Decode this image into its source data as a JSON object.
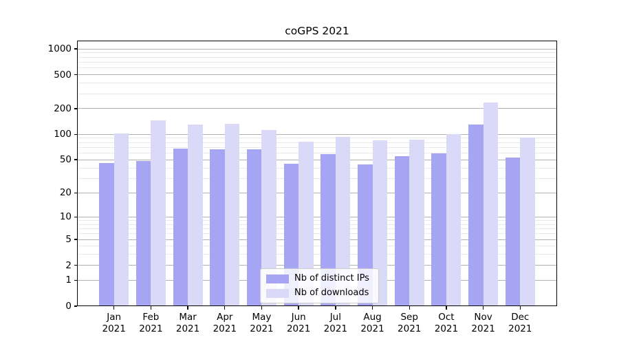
{
  "chart_data": {
    "type": "bar",
    "title": "coGPS 2021",
    "categories": [
      "Jan",
      "Feb",
      "Mar",
      "Apr",
      "May",
      "Jun",
      "Jul",
      "Aug",
      "Sep",
      "Oct",
      "Nov",
      "Dec"
    ],
    "category_year": "2021",
    "series": [
      {
        "name": "Nb of distinct IPs",
        "color": "#a5a5f3",
        "values": [
          46,
          48,
          68,
          66,
          67,
          45,
          58,
          44,
          55,
          60,
          130,
          53
        ]
      },
      {
        "name": "Nb of downloads",
        "color": "#dadaf8",
        "values": [
          102,
          145,
          130,
          132,
          112,
          82,
          93,
          85,
          86,
          100,
          235,
          91
        ]
      }
    ],
    "xlabel": "",
    "ylabel": "",
    "yscale": "log1p",
    "ylim": [
      0,
      1250
    ],
    "y_ticks": [
      0,
      1,
      2,
      5,
      10,
      20,
      50,
      100,
      200,
      500,
      1000
    ],
    "y_minor_ticks": [
      3,
      4,
      6,
      7,
      8,
      9,
      30,
      40,
      60,
      70,
      80,
      90,
      300,
      400,
      600,
      700,
      800,
      900
    ],
    "grid": "horizontal",
    "legend_position": "lower center"
  },
  "colors": {
    "major_grid": "#b0b0b0",
    "minor_grid": "#e9e9e9",
    "spine": "#000000",
    "background": "#ffffff"
  }
}
